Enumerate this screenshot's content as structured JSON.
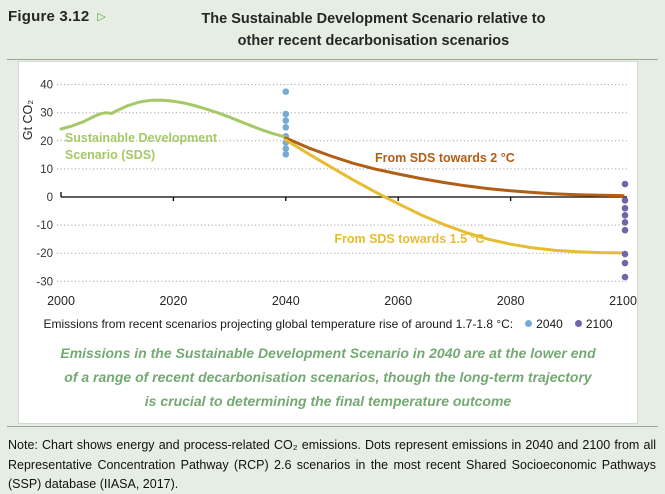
{
  "figure": {
    "label": "Figure 3.12",
    "arrow": "▷",
    "title_line1": "The Sustainable Development Scenario relative to",
    "title_line2": "other recent decarbonisation scenarios"
  },
  "chart_data": {
    "type": "line",
    "title": "The Sustainable Development Scenario relative to other recent decarbonisation scenarios",
    "xlabel": "",
    "ylabel": "Gt CO₂",
    "xlim": [
      2000,
      2100
    ],
    "ylim": [
      -33,
      42
    ],
    "xticks": [
      2000,
      2020,
      2040,
      2060,
      2080,
      2100
    ],
    "yticks": [
      40,
      30,
      20,
      10,
      0,
      -10,
      -20,
      -30
    ],
    "grid": "dotted-horizontal",
    "colors": {
      "grid": "#999999",
      "axis": "#000000",
      "tick_text": "#333333"
    },
    "series": [
      {
        "name": "Sustainable Development Scenario (SDS)",
        "color": "#a4c966",
        "points": [
          [
            2000,
            24.2
          ],
          [
            2002,
            25.3
          ],
          [
            2004,
            26.8
          ],
          [
            2006,
            28.8
          ],
          [
            2007,
            29.6
          ],
          [
            2008,
            30.0
          ],
          [
            2009,
            29.7
          ],
          [
            2010,
            30.8
          ],
          [
            2012,
            32.6
          ],
          [
            2014,
            33.8
          ],
          [
            2016,
            34.4
          ],
          [
            2018,
            34.5
          ],
          [
            2020,
            34.1
          ],
          [
            2022,
            33.4
          ],
          [
            2024,
            32.4
          ],
          [
            2026,
            31.2
          ],
          [
            2028,
            29.9
          ],
          [
            2030,
            28.4
          ],
          [
            2032,
            26.8
          ],
          [
            2034,
            25.2
          ],
          [
            2036,
            23.7
          ],
          [
            2038,
            22.4
          ],
          [
            2040,
            21.3
          ]
        ]
      },
      {
        "name": "From SDS towards 2 °C",
        "color": "#b05f17",
        "points": [
          [
            2040,
            21.0
          ],
          [
            2044,
            17.5
          ],
          [
            2048,
            14.6
          ],
          [
            2052,
            12.0
          ],
          [
            2056,
            9.9
          ],
          [
            2060,
            8.2
          ],
          [
            2064,
            6.6
          ],
          [
            2068,
            5.2
          ],
          [
            2072,
            4.0
          ],
          [
            2076,
            3.0
          ],
          [
            2080,
            2.2
          ],
          [
            2084,
            1.6
          ],
          [
            2088,
            1.1
          ],
          [
            2092,
            0.8
          ],
          [
            2096,
            0.6
          ],
          [
            2100,
            0.5
          ]
        ]
      },
      {
        "name": "From SDS towards 1.5 °C",
        "color": "#e6bd32",
        "points": [
          [
            2040,
            20.3
          ],
          [
            2044,
            15.4
          ],
          [
            2048,
            10.7
          ],
          [
            2052,
            6.1
          ],
          [
            2056,
            1.7
          ],
          [
            2060,
            -2.4
          ],
          [
            2064,
            -6.3
          ],
          [
            2068,
            -9.7
          ],
          [
            2072,
            -12.6
          ],
          [
            2076,
            -15.0
          ],
          [
            2080,
            -16.8
          ],
          [
            2084,
            -18.1
          ],
          [
            2088,
            -19.0
          ],
          [
            2092,
            -19.5
          ],
          [
            2096,
            -19.8
          ],
          [
            2100,
            -19.9
          ]
        ]
      }
    ],
    "scatter": [
      {
        "name": "2040",
        "year": 2040,
        "color": "#77abd2",
        "values": [
          37.5,
          29.5,
          27.2,
          24.8,
          21.6,
          19.4,
          17.2,
          15.2
        ]
      },
      {
        "name": "2100",
        "year": 2100,
        "color": "#6f65a7",
        "values": [
          4.6,
          -1.2,
          -4.0,
          -6.5,
          -9.0,
          -11.8,
          -20.3,
          -23.5,
          -28.5
        ]
      }
    ],
    "annotations": [
      {
        "text": "Sustainable Development",
        "color": "#a4c966",
        "year": 2000.7,
        "value": 19.6,
        "anchor": "start"
      },
      {
        "text": "Scenario (SDS)",
        "color": "#a4c966",
        "year": 2000.7,
        "value": 13.5,
        "anchor": "start"
      },
      {
        "text": "From SDS towards 2 °C",
        "color": "#b05f17",
        "year": 2068.3,
        "value": 12.5,
        "anchor": "middle"
      },
      {
        "text": "From SDS towards 1.5 °C",
        "color": "#e6bd32",
        "year": 2062.0,
        "value": -16.4,
        "anchor": "middle"
      }
    ],
    "legend_position": "bottom"
  },
  "legend": {
    "text": "Emissions from recent scenarios projecting global temperature rise of around 1.7-1.8 °C:",
    "items": [
      {
        "label": "2040",
        "color": "#77abd2"
      },
      {
        "label": "2100",
        "color": "#6f65a7"
      }
    ]
  },
  "message": {
    "line1": "Emissions in the Sustainable Development Scenario in 2040 are at the lower end",
    "line2": "of a range of recent decarbonisation scenarios, though the long-term trajectory",
    "line3": "is crucial to determining the final temperature outcome"
  },
  "note": {
    "text": "Note: Chart shows energy and process-related CO₂ emissions. Dots represent emissions in 2040 and 2100 from all Representative Concentration Pathway (RCP) 2.6 scenarios in the most recent Shared Socioeconomic Pathways (SSP) database (IIASA, 2017)."
  }
}
